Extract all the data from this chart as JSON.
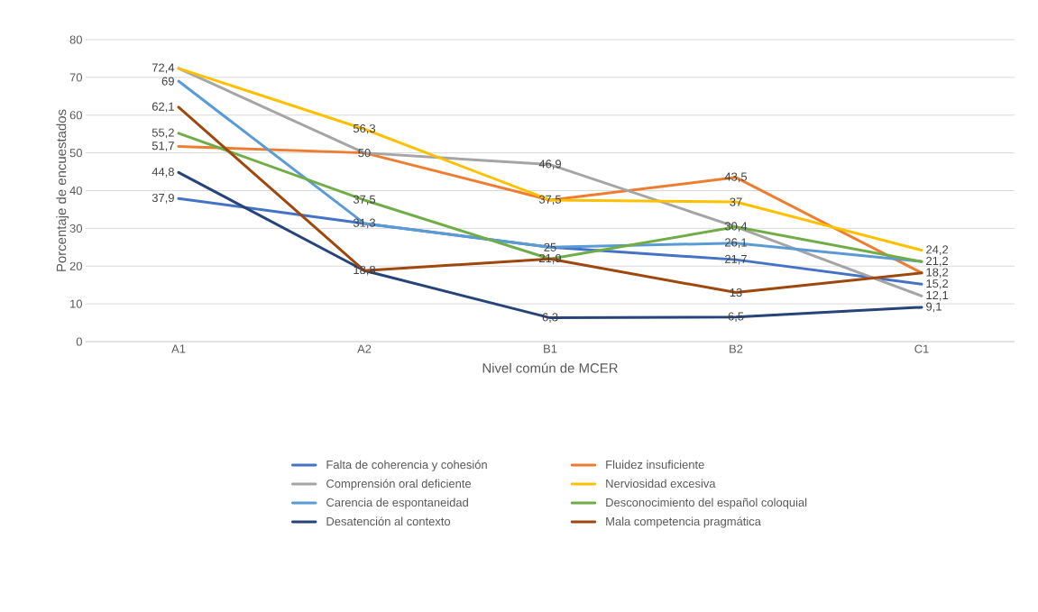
{
  "chart_data": {
    "type": "line",
    "xlabel": "Nivel común de MCER",
    "ylabel": "Porcentaje de encuestados",
    "categories": [
      "A1",
      "A2",
      "B1",
      "B2",
      "C1"
    ],
    "series": [
      {
        "name": "Falta de coherencia y cohesión",
        "color": "#4472c4",
        "values": [
          37.9,
          31.3,
          25,
          21.7,
          15.2
        ],
        "value_labels": [
          "37,9",
          null,
          null,
          "21,7",
          "15,2"
        ]
      },
      {
        "name": "Fluidez insuficiente",
        "color": "#ed7d31",
        "values": [
          51.7,
          50,
          37.5,
          43.5,
          18.2
        ],
        "value_labels": [
          "51,7",
          null,
          null,
          "43,5",
          null
        ]
      },
      {
        "name": "Comprensión oral deficiente",
        "color": "#a5a5a5",
        "values": [
          72.4,
          50,
          46.9,
          30.4,
          12.1
        ],
        "value_labels": [
          null,
          "50",
          "46,9",
          null,
          "12,1"
        ]
      },
      {
        "name": "Nerviosidad excesiva",
        "color": "#ffc000",
        "values": [
          72.4,
          56.3,
          37.5,
          37,
          24.2
        ],
        "value_labels": [
          "72,4",
          "56,3",
          "37,5",
          "37",
          "24,2"
        ]
      },
      {
        "name": "Carencia de espontaneidad",
        "color": "#5b9bd5",
        "values": [
          69,
          31.3,
          25,
          26.1,
          21.2
        ],
        "value_labels": [
          "69",
          "31,3",
          "25",
          "26,1",
          null
        ]
      },
      {
        "name": "Desconocimiento del español coloquial",
        "color": "#70ad47",
        "values": [
          55.2,
          37.5,
          21.9,
          30.4,
          21.2
        ],
        "value_labels": [
          "55,2",
          "37,5",
          null,
          "30,4",
          "21,2"
        ]
      },
      {
        "name": "Desatención al contexto",
        "color": "#264478",
        "values": [
          44.8,
          18.8,
          6.3,
          6.5,
          9.1
        ],
        "value_labels": [
          "44,8",
          null,
          "6,3",
          "6,5",
          "9,1"
        ]
      },
      {
        "name": "Mala competencia pragmática",
        "color": "#9e480e",
        "values": [
          62.1,
          18.8,
          21.9,
          13,
          18.2
        ],
        "value_labels": [
          "62,1",
          "18,8",
          "21,9",
          "13",
          "18,2"
        ]
      }
    ],
    "ylim": [
      0,
      80
    ],
    "yticks": [
      0,
      10,
      20,
      30,
      40,
      50,
      60,
      70,
      80
    ],
    "grid": "y",
    "legend": "bottom",
    "marker": "none",
    "line_style": "solid"
  }
}
